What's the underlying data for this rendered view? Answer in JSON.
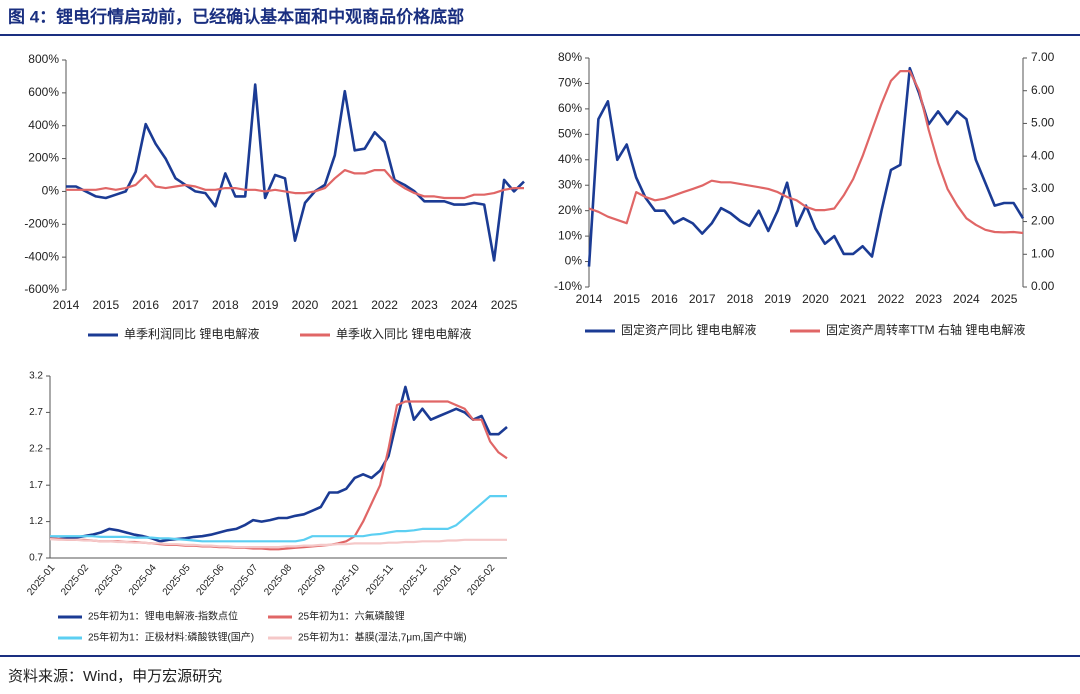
{
  "title": "图 4：锂电行情启动前，已经确认基本面和中观商品价格底部",
  "source": "资料来源：Wind，申万宏源研究",
  "chart_data": [
    {
      "type": "line",
      "categories": [
        "2014",
        null,
        null,
        null,
        "2015",
        null,
        null,
        null,
        "2016",
        null,
        null,
        null,
        "2017",
        null,
        null,
        null,
        "2018",
        null,
        null,
        null,
        "2019",
        null,
        null,
        null,
        "2020",
        null,
        null,
        null,
        "2021",
        null,
        null,
        null,
        "2022",
        null,
        null,
        null,
        "2023",
        null,
        null,
        null,
        "2024",
        null,
        null,
        null,
        "2025",
        null,
        null
      ],
      "ylim": [
        -600,
        800
      ],
      "yticks": [
        {
          "value": -600,
          "label": "-600%"
        },
        {
          "value": -400,
          "label": "-400%"
        },
        {
          "value": -200,
          "label": "-200%"
        },
        {
          "value": 0,
          "label": "0%"
        },
        {
          "value": 200,
          "label": "200%"
        },
        {
          "value": 400,
          "label": "400%"
        },
        {
          "value": 600,
          "label": "600%"
        },
        {
          "value": 800,
          "label": "800%"
        }
      ],
      "series": [
        {
          "name": "单季利润同比 锂电电解液",
          "color": "#1b3b94",
          "values": [
            30,
            30,
            0,
            -30,
            -40,
            -20,
            0,
            120,
            410,
            290,
            200,
            80,
            40,
            0,
            -10,
            -90,
            110,
            -30,
            -30,
            650,
            -40,
            100,
            80,
            -300,
            -70,
            0,
            40,
            220,
            610,
            250,
            260,
            360,
            300,
            70,
            40,
            0,
            -60,
            -60,
            -60,
            -80,
            -80,
            -70,
            -80,
            -420,
            70,
            0,
            60
          ]
        },
        {
          "name": "单季收入同比 锂电电解液",
          "color": "#e06666",
          "values": [
            10,
            10,
            10,
            10,
            20,
            10,
            20,
            40,
            100,
            30,
            20,
            30,
            40,
            30,
            10,
            10,
            20,
            20,
            10,
            10,
            0,
            10,
            0,
            -10,
            -10,
            0,
            20,
            80,
            130,
            110,
            110,
            130,
            130,
            60,
            20,
            -10,
            -30,
            -30,
            -40,
            -40,
            -40,
            -20,
            -20,
            -10,
            10,
            20,
            20
          ]
        }
      ]
    },
    {
      "type": "line",
      "categories": [
        "2014",
        null,
        null,
        null,
        "2015",
        null,
        null,
        null,
        "2016",
        null,
        null,
        null,
        "2017",
        null,
        null,
        null,
        "2018",
        null,
        null,
        null,
        "2019",
        null,
        null,
        null,
        "2020",
        null,
        null,
        null,
        "2021",
        null,
        null,
        null,
        "2022",
        null,
        null,
        null,
        "2023",
        null,
        null,
        null,
        "2024",
        null,
        null,
        null,
        "2025",
        null,
        null
      ],
      "ylim": [
        -10,
        80
      ],
      "yticks": [
        {
          "value": -10,
          "label": "-10%"
        },
        {
          "value": 0,
          "label": "0%"
        },
        {
          "value": 10,
          "label": "10%"
        },
        {
          "value": 20,
          "label": "20%"
        },
        {
          "value": 30,
          "label": "30%"
        },
        {
          "value": 40,
          "label": "40%"
        },
        {
          "value": 50,
          "label": "50%"
        },
        {
          "value": 60,
          "label": "60%"
        },
        {
          "value": 70,
          "label": "70%"
        },
        {
          "value": 80,
          "label": "80%"
        }
      ],
      "y2lim": [
        0,
        7
      ],
      "y2ticks": [
        {
          "value": 0,
          "label": "0.00"
        },
        {
          "value": 1,
          "label": "1.00"
        },
        {
          "value": 2,
          "label": "2.00"
        },
        {
          "value": 3,
          "label": "3.00"
        },
        {
          "value": 4,
          "label": "4.00"
        },
        {
          "value": 5,
          "label": "5.00"
        },
        {
          "value": 6,
          "label": "6.00"
        },
        {
          "value": 7,
          "label": "7.00"
        }
      ],
      "series": [
        {
          "name": "固定资产同比 锂电电解液",
          "color": "#1b3b94",
          "values": [
            -2,
            56,
            63,
            40,
            46,
            33,
            25,
            20,
            20,
            15,
            17,
            15,
            11,
            15,
            21,
            19,
            16,
            14,
            20,
            12,
            20,
            31,
            14,
            22,
            13,
            7,
            10,
            3,
            3,
            6,
            2,
            20,
            36,
            38,
            76,
            66,
            54,
            59,
            54,
            59,
            56,
            40,
            31,
            22,
            23,
            23,
            17
          ]
        },
        {
          "name": "固定资产周转率TTM 右轴 锂电电解液",
          "color": "#e06666",
          "axis": "y2",
          "values": [
            2.4,
            2.3,
            2.15,
            2.05,
            1.95,
            2.9,
            2.75,
            2.65,
            2.7,
            2.8,
            2.9,
            3.0,
            3.1,
            3.25,
            3.2,
            3.2,
            3.15,
            3.1,
            3.05,
            3.0,
            2.9,
            2.75,
            2.65,
            2.45,
            2.35,
            2.35,
            2.4,
            2.8,
            3.3,
            4.0,
            4.8,
            5.6,
            6.3,
            6.6,
            6.6,
            6.0,
            4.8,
            3.8,
            3.0,
            2.5,
            2.1,
            1.9,
            1.75,
            1.68,
            1.67,
            1.68,
            1.65
          ]
        }
      ]
    },
    {
      "type": "line",
      "categories": [
        "2025-01",
        null,
        null,
        null,
        "2025-02",
        null,
        null,
        null,
        "2025-03",
        null,
        null,
        null,
        "2025-04",
        null,
        null,
        null,
        "2025-05",
        null,
        null,
        null,
        "2025-06",
        null,
        null,
        null,
        "2025-07",
        null,
        null,
        null,
        "2025-08",
        null,
        null,
        null,
        "2025-09",
        null,
        null,
        null,
        "2025-10",
        null,
        null,
        null,
        "2025-11",
        null,
        null,
        null,
        "2025-12",
        null,
        null,
        null,
        "2026-01",
        null,
        null,
        null,
        "2026-02",
        null,
        null
      ],
      "ylim": [
        0.7,
        3.2
      ],
      "yticks": [
        0.7,
        1.2,
        1.7,
        2.2,
        2.7,
        3.2
      ],
      "series": [
        {
          "name": "25年初为1：锂电电解液-指数点位",
          "color": "#1b3b94",
          "values": [
            0.97,
            0.96,
            0.97,
            0.98,
            1.0,
            1.02,
            1.05,
            1.1,
            1.08,
            1.05,
            1.02,
            1.0,
            0.97,
            0.93,
            0.95,
            0.96,
            0.97,
            0.99,
            1.0,
            1.02,
            1.05,
            1.08,
            1.1,
            1.15,
            1.22,
            1.2,
            1.22,
            1.25,
            1.25,
            1.28,
            1.3,
            1.35,
            1.4,
            1.6,
            1.6,
            1.65,
            1.8,
            1.85,
            1.8,
            1.9,
            2.1,
            2.6,
            3.05,
            2.6,
            2.75,
            2.6,
            2.65,
            2.7,
            2.75,
            2.7,
            2.6,
            2.65,
            2.4,
            2.4,
            2.5
          ]
        },
        {
          "name": "25年初为1：六氟磷酸锂",
          "color": "#e06666",
          "values": [
            0.97,
            0.96,
            0.95,
            0.95,
            0.95,
            0.94,
            0.93,
            0.93,
            0.93,
            0.92,
            0.92,
            0.91,
            0.9,
            0.89,
            0.88,
            0.88,
            0.87,
            0.87,
            0.86,
            0.86,
            0.85,
            0.85,
            0.84,
            0.84,
            0.83,
            0.83,
            0.82,
            0.82,
            0.83,
            0.84,
            0.85,
            0.86,
            0.87,
            0.88,
            0.9,
            0.93,
            1.0,
            1.2,
            1.45,
            1.7,
            2.2,
            2.8,
            2.85,
            2.85,
            2.85,
            2.85,
            2.85,
            2.85,
            2.8,
            2.75,
            2.6,
            2.6,
            2.3,
            2.15,
            2.07
          ]
        },
        {
          "name": "25年初为1：正极材料:磷酸铁锂(国产)",
          "color": "#5ccff2",
          "values": [
            1.0,
            1.0,
            1.0,
            1.0,
            1.0,
            1.0,
            0.99,
            0.99,
            0.99,
            0.99,
            0.98,
            0.98,
            0.98,
            0.97,
            0.97,
            0.96,
            0.95,
            0.94,
            0.93,
            0.93,
            0.93,
            0.93,
            0.93,
            0.93,
            0.93,
            0.93,
            0.93,
            0.93,
            0.93,
            0.93,
            0.95,
            1.0,
            1.0,
            1.0,
            1.0,
            1.0,
            1.0,
            1.0,
            1.02,
            1.03,
            1.05,
            1.07,
            1.07,
            1.08,
            1.1,
            1.1,
            1.1,
            1.1,
            1.15,
            1.25,
            1.35,
            1.45,
            1.55,
            1.55,
            1.55
          ]
        },
        {
          "name": "25年初为1：基膜(湿法,7μm,国产中端)",
          "color": "#f5c8c8",
          "values": [
            0.96,
            0.95,
            0.95,
            0.95,
            0.94,
            0.94,
            0.93,
            0.93,
            0.92,
            0.92,
            0.91,
            0.91,
            0.9,
            0.9,
            0.89,
            0.89,
            0.88,
            0.88,
            0.87,
            0.87,
            0.86,
            0.86,
            0.85,
            0.85,
            0.85,
            0.85,
            0.85,
            0.85,
            0.86,
            0.86,
            0.87,
            0.87,
            0.88,
            0.88,
            0.89,
            0.89,
            0.9,
            0.9,
            0.9,
            0.9,
            0.91,
            0.91,
            0.92,
            0.92,
            0.93,
            0.93,
            0.93,
            0.94,
            0.94,
            0.95,
            0.95,
            0.95,
            0.95,
            0.95,
            0.95
          ]
        }
      ]
    }
  ]
}
